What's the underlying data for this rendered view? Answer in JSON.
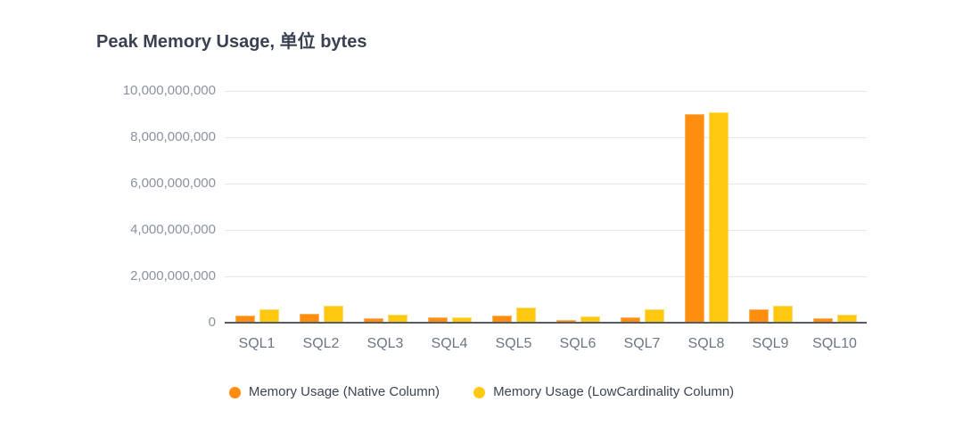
{
  "title": "Peak Memory Usage, 单位 bytes",
  "chart_data": {
    "type": "bar",
    "title": "Peak Memory Usage, 单位 bytes",
    "categories": [
      "SQL1",
      "SQL2",
      "SQL3",
      "SQL4",
      "SQL5",
      "SQL6",
      "SQL7",
      "SQL8",
      "SQL9",
      "SQL10"
    ],
    "series": [
      {
        "name": "Memory Usage (Native Column)",
        "color": "#FF8D0E",
        "values": [
          300000000,
          400000000,
          210000000,
          240000000,
          290000000,
          100000000,
          220000000,
          9000000000,
          570000000,
          200000000
        ]
      },
      {
        "name": "Memory Usage (LowCardinality Column)",
        "color": "#FFC912",
        "values": [
          560000000,
          720000000,
          330000000,
          250000000,
          670000000,
          260000000,
          570000000,
          9070000000,
          730000000,
          350000000
        ]
      }
    ],
    "yticks": [
      {
        "value": 10000000000,
        "label": "10,000,000,000"
      },
      {
        "value": 8000000000,
        "label": "8,000,000,000"
      },
      {
        "value": 6000000000,
        "label": "6,000,000,000"
      },
      {
        "value": 4000000000,
        "label": "4,000,000,000"
      },
      {
        "value": 2000000000,
        "label": "2,000,000,000"
      },
      {
        "value": 0,
        "label": "0"
      }
    ],
    "ylim": [
      0,
      10000000000
    ],
    "xlabel": "",
    "ylabel": "",
    "grid": true,
    "legend_position": "bottom"
  }
}
